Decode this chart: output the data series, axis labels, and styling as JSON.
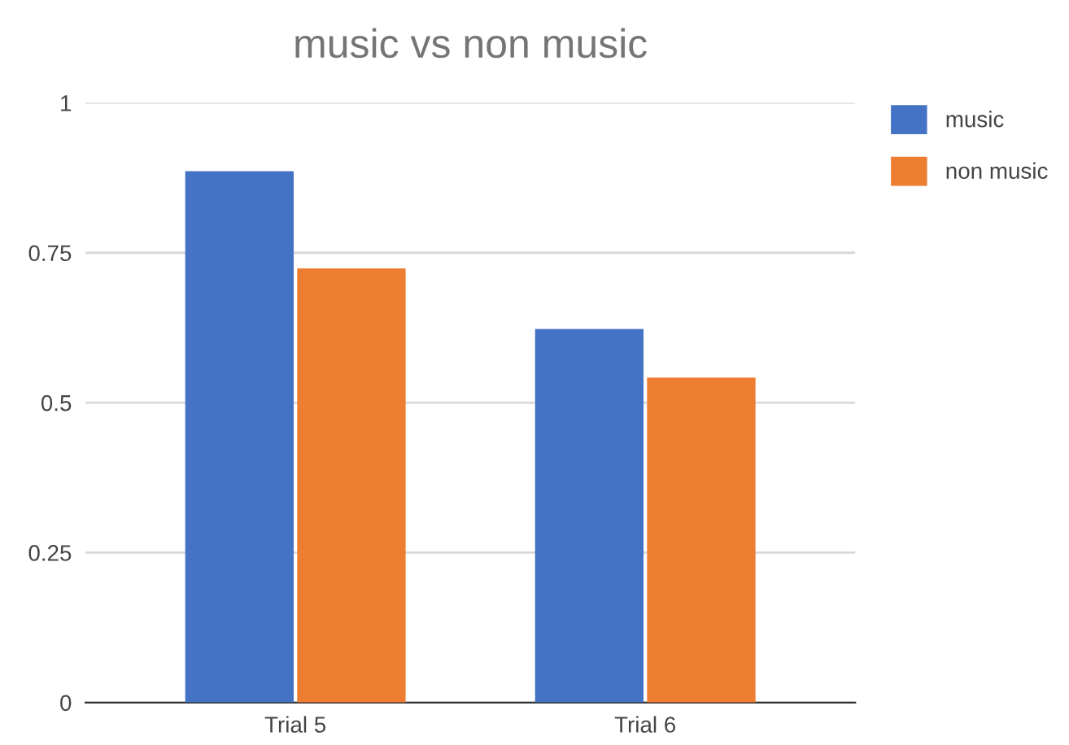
{
  "chart_data": {
    "type": "bar",
    "title": "music vs non music",
    "categories": [
      "Trial 5",
      "Trial 6"
    ],
    "series": [
      {
        "name": "music",
        "color": "#4472c4",
        "values": [
          0.886,
          0.623
        ]
      },
      {
        "name": "non music",
        "color": "#ed7d31",
        "values": [
          0.724,
          0.542
        ]
      }
    ],
    "ylim": [
      0,
      1
    ],
    "yticks": [
      0,
      0.25,
      0.5,
      0.75,
      1
    ],
    "grid": "y",
    "legend": "top right"
  }
}
